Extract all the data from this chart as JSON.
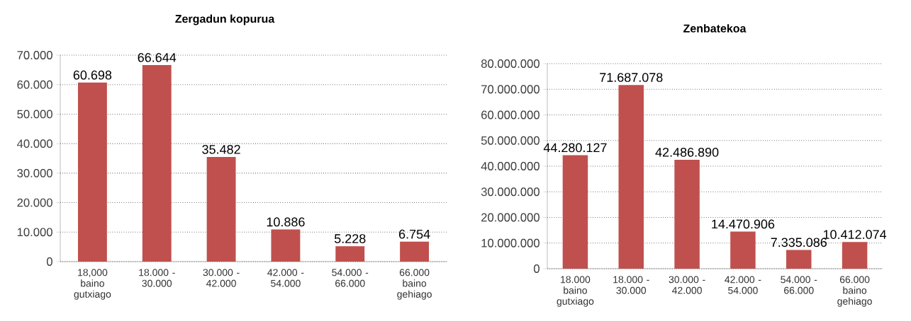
{
  "chart_data": [
    {
      "type": "bar",
      "title": "Zergadun kopurua",
      "categories": [
        "18,000 baino gutxiago",
        "18.000 - 30.000",
        "30.000 - 42.000",
        "42.000 - 54.000",
        "54.000 - 66.000",
        "66.000 baino gehiago"
      ],
      "values": [
        60698,
        66644,
        35482,
        10886,
        5228,
        6754
      ],
      "value_labels": [
        "60.698",
        "66.644",
        "35.482",
        "10.886",
        "5.228",
        "6.754"
      ],
      "color": "#c0504d",
      "ylim": [
        0,
        70000
      ],
      "yticks": [
        0,
        {
          "value": 10000,
          "label": "10.000"
        },
        {
          "value": 20000,
          "label": "20.000"
        },
        {
          "value": 30000,
          "label": "30.000"
        },
        {
          "value": 40000,
          "label": "40.000"
        },
        {
          "value": 50000,
          "label": "50.000"
        },
        {
          "value": 60000,
          "label": "60.000"
        },
        {
          "value": 70000,
          "label": "70.000"
        }
      ],
      "grid": "y"
    },
    {
      "type": "bar",
      "title": "Zenbatekoa",
      "categories": [
        "18.000 baino gutxiago",
        "18.000 - 30.000",
        "30.000 - 42.000",
        "42.000 - 54.000",
        "54.000 - 66.000",
        "66.000 baino gehiago"
      ],
      "values": [
        44280127,
        71687078,
        42486890,
        14470906,
        7335086,
        10412074
      ],
      "value_labels": [
        "44.280.127",
        "71.687.078",
        "42.486.890",
        "14.470.906",
        "7.335.086",
        "10.412.074"
      ],
      "color": "#c0504d",
      "ylim": [
        0,
        80000000
      ],
      "yticks": [
        0,
        {
          "value": 10000000,
          "label": "10.000.000"
        },
        {
          "value": 20000000,
          "label": "20.000.000"
        },
        {
          "value": 30000000,
          "label": "30.000.000"
        },
        {
          "value": 40000000,
          "label": "40.000.000"
        },
        {
          "value": 50000000,
          "label": "50.000.000"
        },
        {
          "value": 60000000,
          "label": "60.000.000"
        },
        {
          "value": 70000000,
          "label": "70.000.000"
        },
        {
          "value": 80000000,
          "label": "80.000.000"
        }
      ],
      "grid": "y"
    }
  ]
}
